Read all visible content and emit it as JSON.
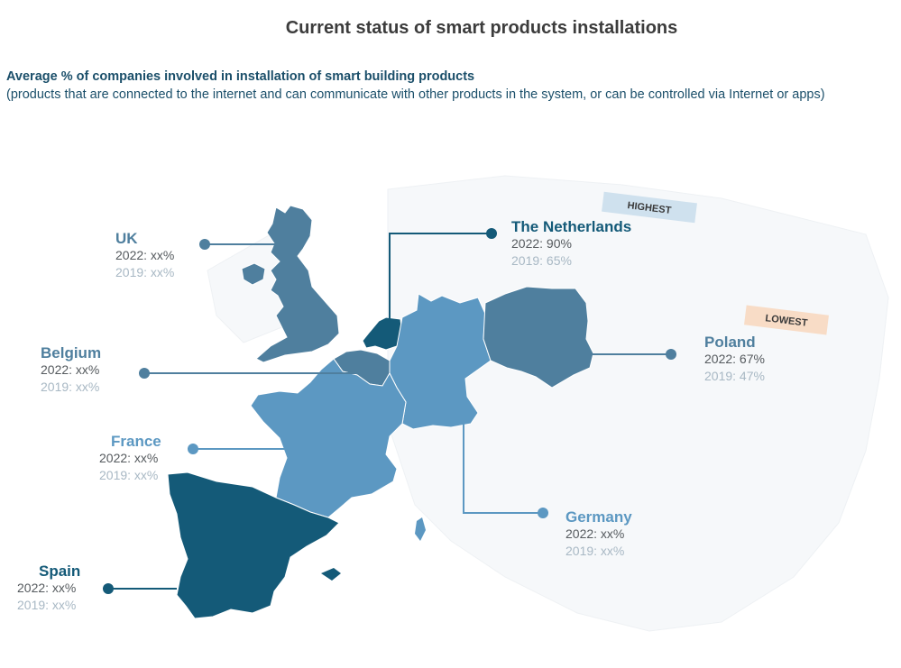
{
  "title": "Current status of smart products installations",
  "subtitle": "Average % of companies involved in installation of smart building products",
  "description": "(products that are  connected to the internet and can communicate with other products in the system, or can be controlled via  Internet or apps)",
  "colors": {
    "dark": "#145a78",
    "medium": "#4f7f9e",
    "light": "#5c98c2",
    "background_land": "#f5f7f9",
    "highest_tag": "#cfe1ee",
    "lowest_tag": "#f8dcc6"
  },
  "tags": {
    "highest": "HIGHEST",
    "lowest": "LOWEST"
  },
  "countries": {
    "uk": {
      "name": "UK",
      "v2022": "2022: xx%",
      "v2019": "2019: xx%",
      "color": "#4f7f9e"
    },
    "netherlands": {
      "name": "The Netherlands",
      "v2022": "2022: 90%",
      "v2019": "2019: 65%",
      "color": "#145a78"
    },
    "belgium": {
      "name": "Belgium",
      "v2022": "2022: xx%",
      "v2019": "2019: xx%",
      "color": "#4f7f9e"
    },
    "poland": {
      "name": "Poland",
      "v2022": "2022: 67%",
      "v2019": "2019: 47%",
      "color": "#4f7f9e"
    },
    "france": {
      "name": "France",
      "v2022": "2022: xx%",
      "v2019": "2019: xx%",
      "color": "#5c98c2"
    },
    "germany": {
      "name": "Germany",
      "v2022": "2022: xx%",
      "v2019": "2019: xx%",
      "color": "#5c98c2"
    },
    "spain": {
      "name": "Spain",
      "v2022": "2022: xx%",
      "v2019": "2019: xx%",
      "color": "#145a78"
    }
  }
}
